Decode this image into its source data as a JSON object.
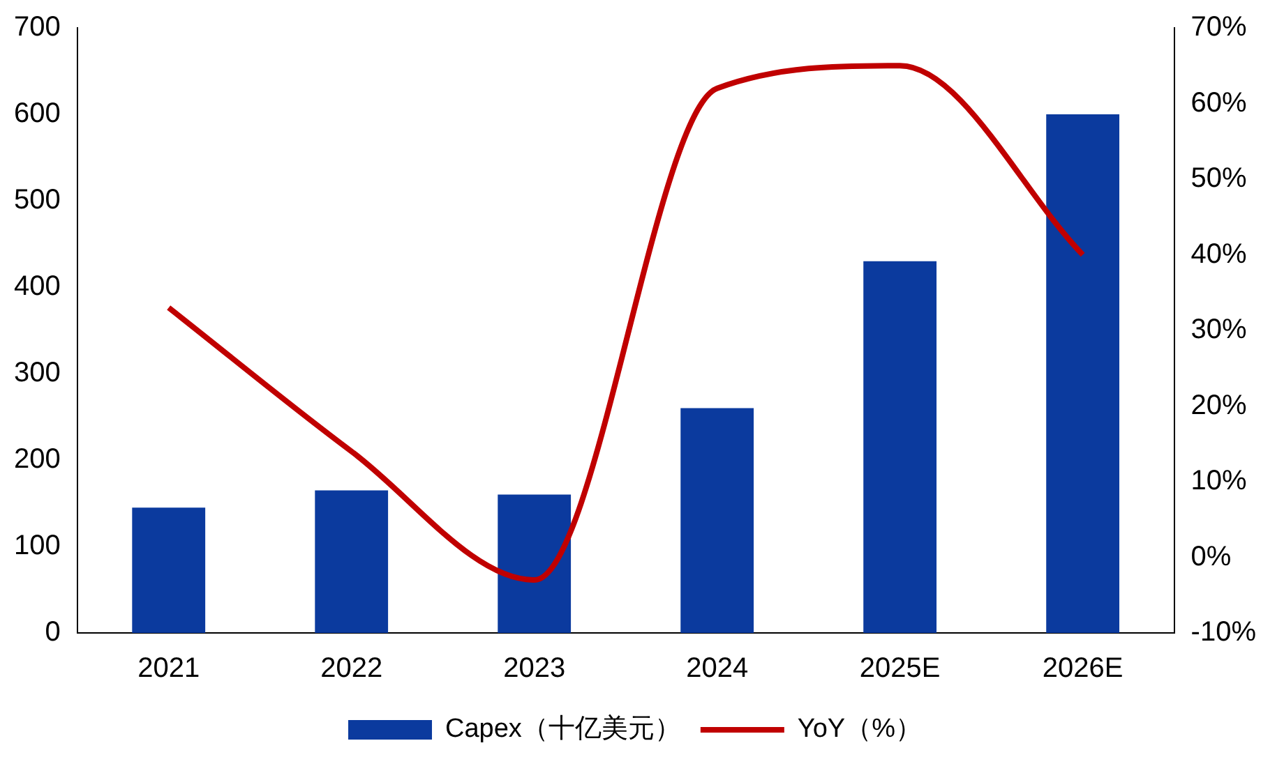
{
  "chart_data": {
    "type": "bar",
    "categories": [
      "2021",
      "2022",
      "2023",
      "2024",
      "2025E",
      "2026E"
    ],
    "series": [
      {
        "name": "Capex（十亿美元）",
        "color": "#0b3a9e",
        "values": [
          145,
          165,
          160,
          260,
          430,
          600
        ]
      },
      {
        "name": "YoY（%）",
        "type": "line",
        "axis": "y2",
        "color": "#c00000",
        "values": [
          33,
          14,
          -3,
          62,
          65,
          40
        ]
      }
    ],
    "ylim": [
      0,
      700
    ],
    "yticks": [
      0,
      100,
      200,
      300,
      400,
      500,
      600,
      700
    ],
    "y2lim": [
      -10,
      70
    ],
    "y2ticks": [
      {
        "value": -10,
        "label": "-10%"
      },
      {
        "value": 0,
        "label": "0%"
      },
      {
        "value": 10,
        "label": "10%"
      },
      {
        "value": 20,
        "label": "20%"
      },
      {
        "value": 30,
        "label": "30%"
      },
      {
        "value": 40,
        "label": "40%"
      },
      {
        "value": 50,
        "label": "50%"
      },
      {
        "value": 60,
        "label": "60%"
      },
      {
        "value": 70,
        "label": "70%"
      }
    ],
    "grid": false,
    "legend": "bottom",
    "marker": "none"
  }
}
